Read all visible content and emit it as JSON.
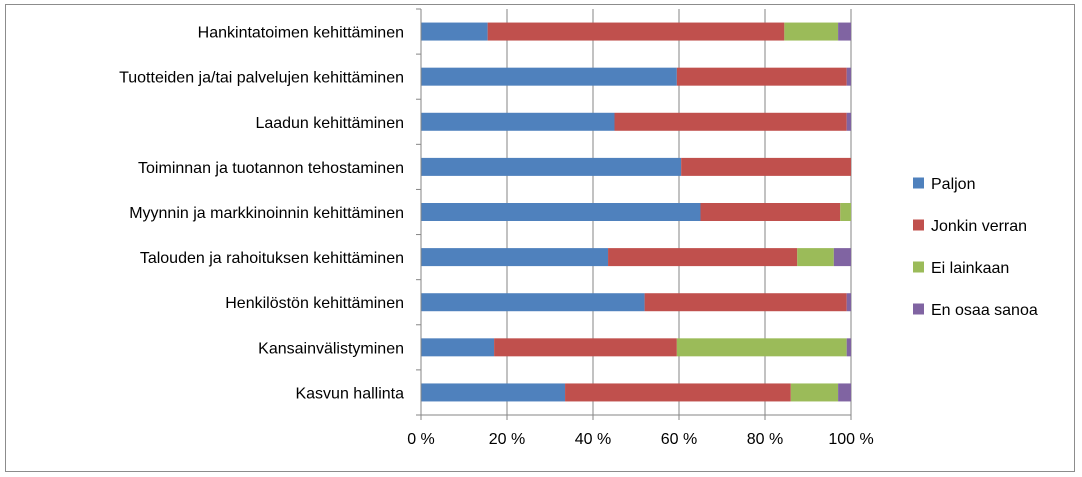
{
  "chart_data": {
    "type": "bar",
    "orientation": "horizontal",
    "stacked": "percent",
    "categories": [
      "Hankintatoimen kehittäminen",
      "Tuotteiden ja/tai palvelujen kehittäminen",
      "Laadun kehittäminen",
      "Toiminnan ja tuotannon tehostaminen",
      "Myynnin ja markkinoinnin kehittäminen",
      "Talouden ja rahoituksen kehittäminen",
      "Henkilöstön kehittäminen",
      "Kansainvälistyminen",
      "Kasvun hallinta"
    ],
    "series": [
      {
        "name": "Paljon",
        "color": "#4F81BD",
        "values": [
          15.5,
          59.5,
          45,
          60.5,
          65,
          43.5,
          52,
          17,
          33.5
        ]
      },
      {
        "name": "Jonkin verran",
        "color": "#C0504D",
        "values": [
          69,
          39.5,
          54,
          39.5,
          32.5,
          44,
          47,
          42.5,
          52.5
        ]
      },
      {
        "name": "Ei lainkaan",
        "color": "#9BBB59",
        "values": [
          12.5,
          0,
          0,
          0,
          2.5,
          8.5,
          0,
          39.5,
          11
        ]
      },
      {
        "name": "En osaa sanoa",
        "color": "#8064A2",
        "values": [
          3,
          1,
          1,
          0,
          0,
          4,
          1,
          1,
          3
        ]
      }
    ],
    "x_ticks": [
      "0 %",
      "20 %",
      "40 %",
      "60 %",
      "80 %",
      "100 %"
    ],
    "xlim": [
      0,
      100
    ],
    "grid": true,
    "legend_position": "right",
    "title": "",
    "xlabel": "",
    "ylabel": ""
  }
}
